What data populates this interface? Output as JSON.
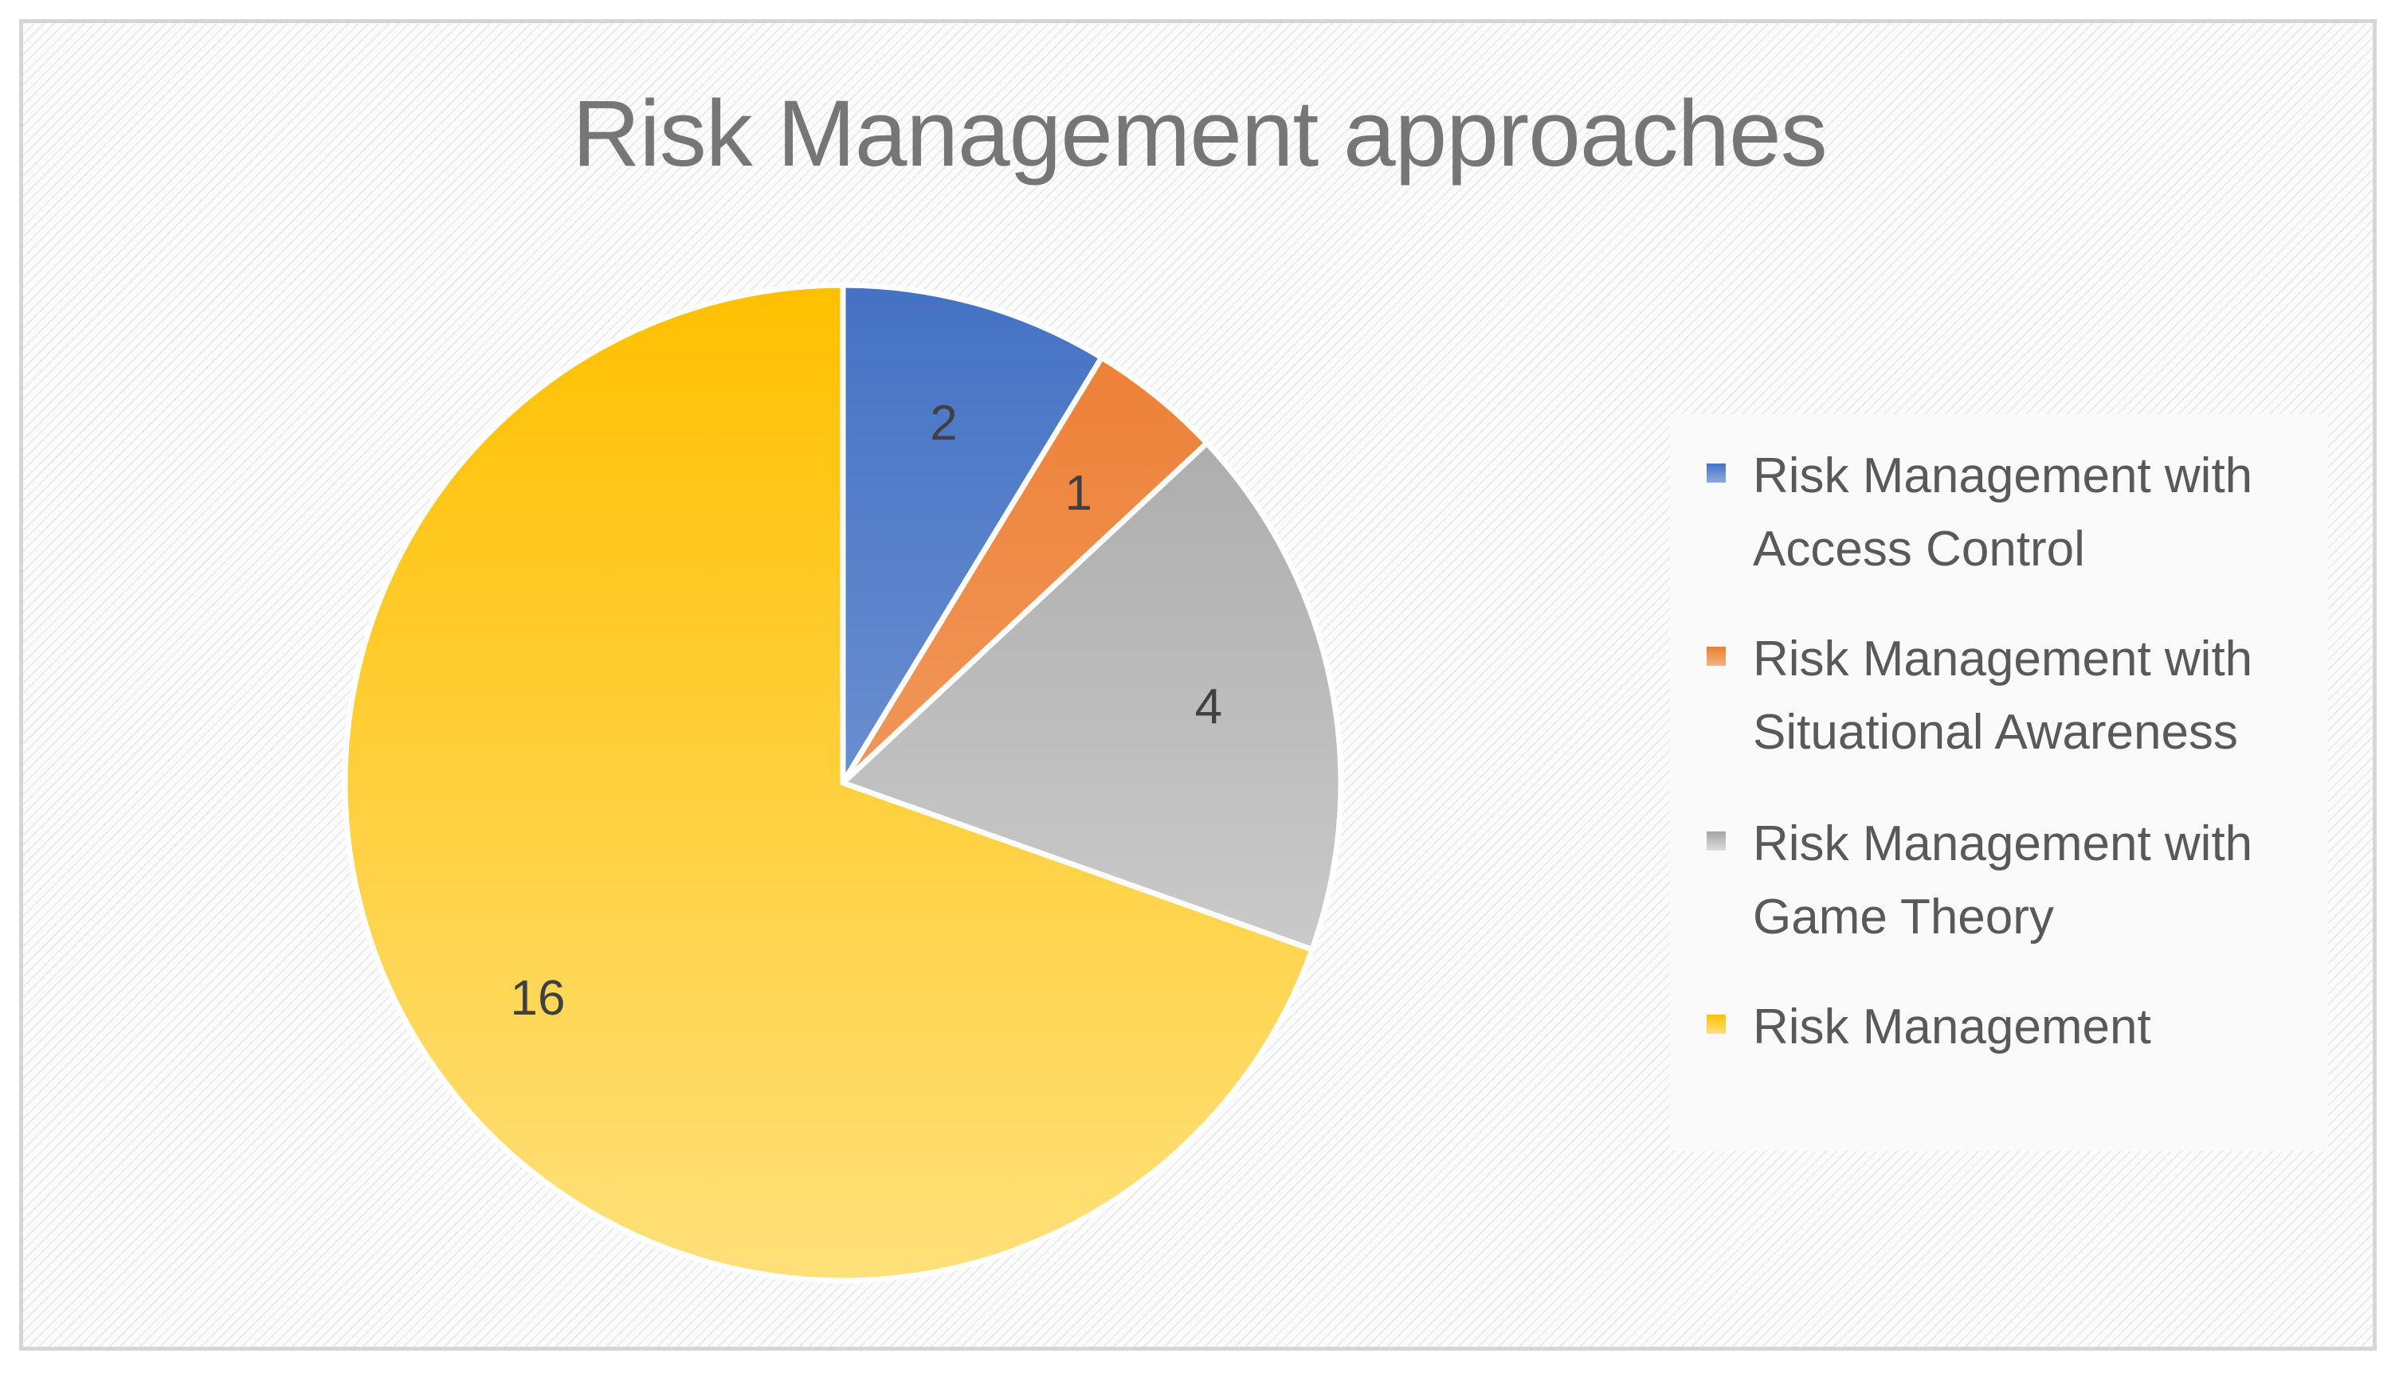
{
  "chart_data": {
    "type": "pie",
    "title": "Risk Management approaches",
    "series": [
      {
        "name": "Risk Management with Access Control",
        "value": 2,
        "color": "#4472c4",
        "color_light": "#8faadc"
      },
      {
        "name": "Risk Management with Situational Awareness",
        "value": 1,
        "color": "#ed7d31",
        "color_light": "#f4b183"
      },
      {
        "name": "Risk Management with Game Theory",
        "value": 4,
        "color": "#a5a5a5",
        "color_light": "#dcdcdc"
      },
      {
        "name": "Risk Management",
        "value": 16,
        "color": "#ffc000",
        "color_light": "#ffe07a"
      }
    ],
    "data_labels": [
      "2",
      "1",
      "4",
      "16"
    ],
    "legend_position": "right"
  }
}
